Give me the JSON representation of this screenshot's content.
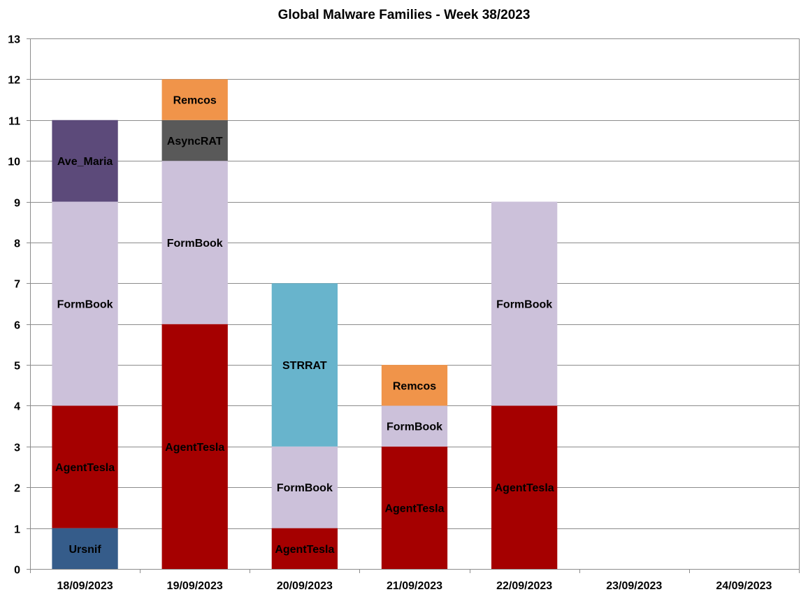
{
  "chart_data": {
    "type": "bar",
    "stacked": true,
    "title": "Global Malware Families - Week 38/2023",
    "xlabel": "",
    "ylabel": "",
    "ylim": [
      0,
      13
    ],
    "yticks": [
      0,
      1,
      2,
      3,
      4,
      5,
      6,
      7,
      8,
      9,
      10,
      11,
      12,
      13
    ],
    "grid": true,
    "legend": "none",
    "categories": [
      "18/09/2023",
      "19/09/2023",
      "20/09/2023",
      "21/09/2023",
      "22/09/2023",
      "23/09/2023",
      "24/09/2023"
    ],
    "colors": {
      "Ursnif": "#355c8a",
      "AgentTesla": "#a50000",
      "FormBook": "#ccc1da",
      "Ave_Maria": "#5c4a7a",
      "AsyncRAT": "#595959",
      "Remcos": "#f0944a",
      "STRRAT": "#68b4cc"
    },
    "stacks": [
      {
        "category": "18/09/2023",
        "segments": [
          {
            "family": "Ursnif",
            "value": 1
          },
          {
            "family": "AgentTesla",
            "value": 3
          },
          {
            "family": "FormBook",
            "value": 5
          },
          {
            "family": "Ave_Maria",
            "value": 2
          }
        ]
      },
      {
        "category": "19/09/2023",
        "segments": [
          {
            "family": "AgentTesla",
            "value": 6
          },
          {
            "family": "FormBook",
            "value": 4
          },
          {
            "family": "AsyncRAT",
            "value": 1
          },
          {
            "family": "Remcos",
            "value": 1
          }
        ]
      },
      {
        "category": "20/09/2023",
        "segments": [
          {
            "family": "AgentTesla",
            "value": 1
          },
          {
            "family": "FormBook",
            "value": 2
          },
          {
            "family": "STRRAT",
            "value": 4
          }
        ]
      },
      {
        "category": "21/09/2023",
        "segments": [
          {
            "family": "AgentTesla",
            "value": 3
          },
          {
            "family": "FormBook",
            "value": 1
          },
          {
            "family": "Remcos",
            "value": 1
          }
        ]
      },
      {
        "category": "22/09/2023",
        "segments": [
          {
            "family": "AgentTesla",
            "value": 4
          },
          {
            "family": "FormBook",
            "value": 5
          }
        ]
      },
      {
        "category": "23/09/2023",
        "segments": []
      },
      {
        "category": "24/09/2023",
        "segments": []
      }
    ]
  }
}
